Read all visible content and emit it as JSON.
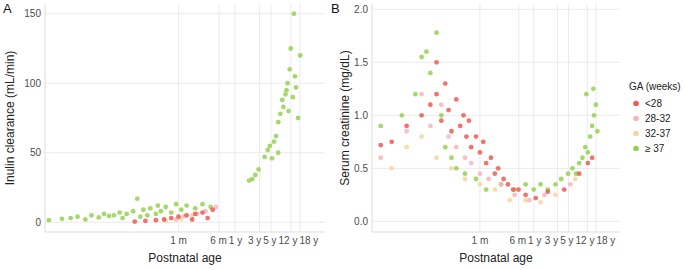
{
  "chart_data": [
    {
      "type": "scatter",
      "title": "A",
      "x_label": "Postnatal age",
      "y_label": "Inulin clearance (mL/min)",
      "log": "x",
      "grid": true,
      "xlim": [
        0.08,
        20000
      ],
      "xticks": [
        {
          "value": 30,
          "label": "1 m"
        },
        {
          "value": 182,
          "label": "6 m"
        },
        {
          "value": 365,
          "label": "1 y"
        },
        {
          "value": 1095,
          "label": "3 y"
        },
        {
          "value": 1826,
          "label": "5 y"
        },
        {
          "value": 4383,
          "label": "12 y"
        },
        {
          "value": 6574,
          "label": "18 y"
        }
      ],
      "ylim": [
        -7,
        157
      ],
      "yticks": [
        0,
        50,
        100,
        150
      ],
      "series": [
        {
          "color": "#ef5b52",
          "x": [
            4.3,
            6.9,
            11,
            15.8,
            21.7,
            30,
            43,
            63,
            87,
            137,
            109,
            55
          ],
          "values": [
            0.5,
            1,
            1.5,
            2,
            3,
            4,
            5,
            6,
            7,
            9,
            3,
            2
          ]
        },
        {
          "color": "#f7b6bf",
          "x": [
            27,
            39,
            68,
            99,
            158
          ],
          "values": [
            2,
            4.5,
            6,
            8,
            11
          ]
        },
        {
          "color": "#f3d79f",
          "x": [
            17,
            34,
            55
          ],
          "values": [
            1,
            2.5,
            5
          ]
        },
        {
          "color": "#94d151",
          "x": [
            0.095,
            0.17,
            0.25,
            0.34,
            0.48,
            0.63,
            0.87,
            1.1,
            1.37,
            1.7,
            2.2,
            2.5,
            3,
            4,
            4.8,
            5.5,
            6.3,
            7.5,
            8.6,
            11,
            12,
            13.7,
            17,
            21.7,
            27,
            34,
            43,
            63,
            87,
            125,
            687,
            789,
            907,
            1046,
            1371,
            1571,
            1726,
            1896,
            2080,
            2283,
            2507,
            2507,
            2752,
            3000,
            3150,
            3460,
            3620,
            3800,
            3970,
            4170,
            4370,
            4800,
            5020,
            5270,
            5520,
            6060,
            6660
          ],
          "values": [
            1.5,
            2.5,
            3,
            4,
            2,
            5,
            3.5,
            6,
            4.5,
            5,
            7,
            3,
            6,
            8,
            17,
            4,
            9,
            5,
            10,
            6,
            12,
            8,
            11,
            7,
            13,
            9,
            12,
            10,
            13,
            11,
            30,
            31,
            34,
            38,
            47,
            52,
            55,
            46,
            58,
            62,
            50,
            72,
            78,
            88,
            83,
            92,
            95,
            100,
            80,
            110,
            125,
            90,
            150,
            105,
            97,
            75,
            120
          ]
        }
      ]
    },
    {
      "type": "scatter",
      "title": "B",
      "x_label": "Postnatal age",
      "y_label": "Serum creatinine (mg/dL)",
      "log": "x",
      "grid": true,
      "legend": "right",
      "legend_title": "GA (weeks)",
      "xlim": [
        0.2,
        20000
      ],
      "xticks": [
        {
          "value": 30,
          "label": "1 m"
        },
        {
          "value": 182,
          "label": "6 m"
        },
        {
          "value": 365,
          "label": "1 y"
        },
        {
          "value": 1095,
          "label": "3 y"
        },
        {
          "value": 1826,
          "label": "5 y"
        },
        {
          "value": 4383,
          "label": "12 y"
        },
        {
          "value": 6574,
          "label": "18 y"
        }
      ],
      "ylim": [
        -0.1,
        2.05
      ],
      "yticks": [
        {
          "value": 0,
          "label": "0.0"
        },
        {
          "value": 0.5,
          "label": "0.5"
        },
        {
          "value": 1,
          "label": "1.0"
        },
        {
          "value": 1.5,
          "label": "1.5"
        },
        {
          "value": 2,
          "label": "2.0"
        }
      ],
      "series": [
        {
          "name": "<28",
          "color": "#ef5b52",
          "x": [
            0.3,
            0.5,
            1,
            2,
            3,
            4,
            4,
            5,
            6,
            7,
            8,
            10,
            12,
            14,
            16,
            18,
            20,
            25,
            30,
            35,
            40,
            50,
            60,
            70,
            90,
            110,
            140,
            180,
            250,
            400,
            700,
            1500,
            3000,
            4500,
            5500
          ],
          "values": [
            0.72,
            0.75,
            0.9,
            1.0,
            1.1,
            1.2,
            1.5,
            0.95,
            1.3,
            1.05,
            0.85,
            1.15,
            0.9,
            1.0,
            0.8,
            0.95,
            0.7,
            0.8,
            0.65,
            0.75,
            0.55,
            0.6,
            0.45,
            0.5,
            0.4,
            0.35,
            0.3,
            0.3,
            0.25,
            0.22,
            0.28,
            0.3,
            0.45,
            0.55,
            0.6
          ]
        },
        {
          "name": "28-32",
          "color": "#f7b6bf",
          "x": [
            0.3,
            1,
            2,
            3,
            5,
            7,
            10,
            15,
            20,
            30,
            45,
            80,
            150,
            300,
            600,
            2000
          ],
          "values": [
            0.6,
            0.85,
            1.2,
            0.9,
            1.1,
            0.8,
            0.7,
            0.6,
            0.55,
            0.45,
            0.4,
            0.35,
            0.25,
            0.2,
            0.25,
            0.35
          ]
        },
        {
          "name": "32-37",
          "color": "#f3d79f",
          "x": [
            0.5,
            1,
            2,
            4,
            8,
            15,
            30,
            60,
            120,
            250,
            500,
            1000,
            2500
          ],
          "values": [
            0.5,
            0.7,
            0.8,
            0.6,
            0.5,
            0.4,
            0.35,
            0.3,
            0.2,
            0.2,
            0.18,
            0.25,
            0.4
          ]
        },
        {
          "name": "≥ 37",
          "color": "#94d151",
          "x": [
            0.3,
            0.8,
            1.5,
            2,
            2.5,
            3,
            4,
            5,
            6,
            8,
            10,
            15,
            25,
            40,
            80,
            150,
            250,
            365,
            500,
            700,
            1000,
            1300,
            1800,
            2200,
            2600,
            3000,
            3500,
            4000,
            4200,
            4500,
            5000,
            5500,
            5800,
            6000,
            6500,
            7000
          ],
          "values": [
            0.9,
            1.0,
            1.2,
            1.55,
            1.6,
            1.4,
            1.78,
            1.0,
            0.7,
            0.6,
            0.5,
            0.45,
            0.4,
            0.3,
            0.35,
            0.3,
            0.35,
            0.3,
            0.35,
            0.3,
            0.35,
            0.4,
            0.45,
            0.5,
            0.45,
            0.55,
            0.6,
            0.7,
            1.2,
            0.65,
            0.8,
            0.9,
            1.25,
            1.0,
            1.1,
            0.85
          ]
        }
      ]
    }
  ]
}
